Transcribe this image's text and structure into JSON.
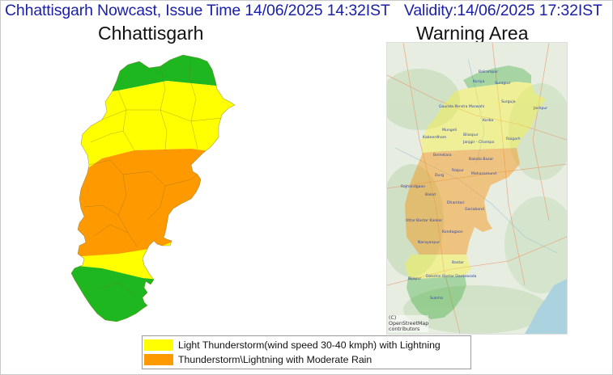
{
  "header": {
    "title": "Chhattisgarh Nowcast, Issue Time 14/06/2025 14:32IST",
    "validity": "Validity:14/06/2025 17:32IST"
  },
  "left_panel": {
    "title": "Chhattisgarh"
  },
  "right_panel": {
    "title": "Warning Area",
    "attribution": [
      "(C)",
      "OpenStreetMap",
      "contributors"
    ],
    "places": [
      "Balrampur",
      "Koriya",
      "Surajpur",
      "Surguja",
      "Jashpur",
      "Gaurela Pendra Marwahi",
      "Korba",
      "Mungeli",
      "Bilaspur",
      "Kabeerdham",
      "Janjgir - Champa",
      "Raigarh",
      "Bemetara",
      "Baloda Bazar",
      "Durg",
      "Raipur",
      "Mahasamund",
      "Rajnandgaon",
      "Balod",
      "Dhamtari",
      "Gariaband",
      "Uttar Bastar Kanker",
      "Kondagaon",
      "Narayanpur",
      "Bastar",
      "Bijapur",
      "Dakshin Bastar Dantewada",
      "Sukma"
    ]
  },
  "colors": {
    "yellow": "#ffff00",
    "orange": "#ff9900",
    "green": "#1fb71f",
    "header_text": "#1a20a8"
  },
  "legend": {
    "items": [
      {
        "label": "Light Thunderstorm(wind speed 30-40 kmph) with Lightning",
        "color": "#ffff00"
      },
      {
        "label": "Thunderstorm\\Lightning with Moderate Rain",
        "color": "#ff9900"
      }
    ]
  }
}
